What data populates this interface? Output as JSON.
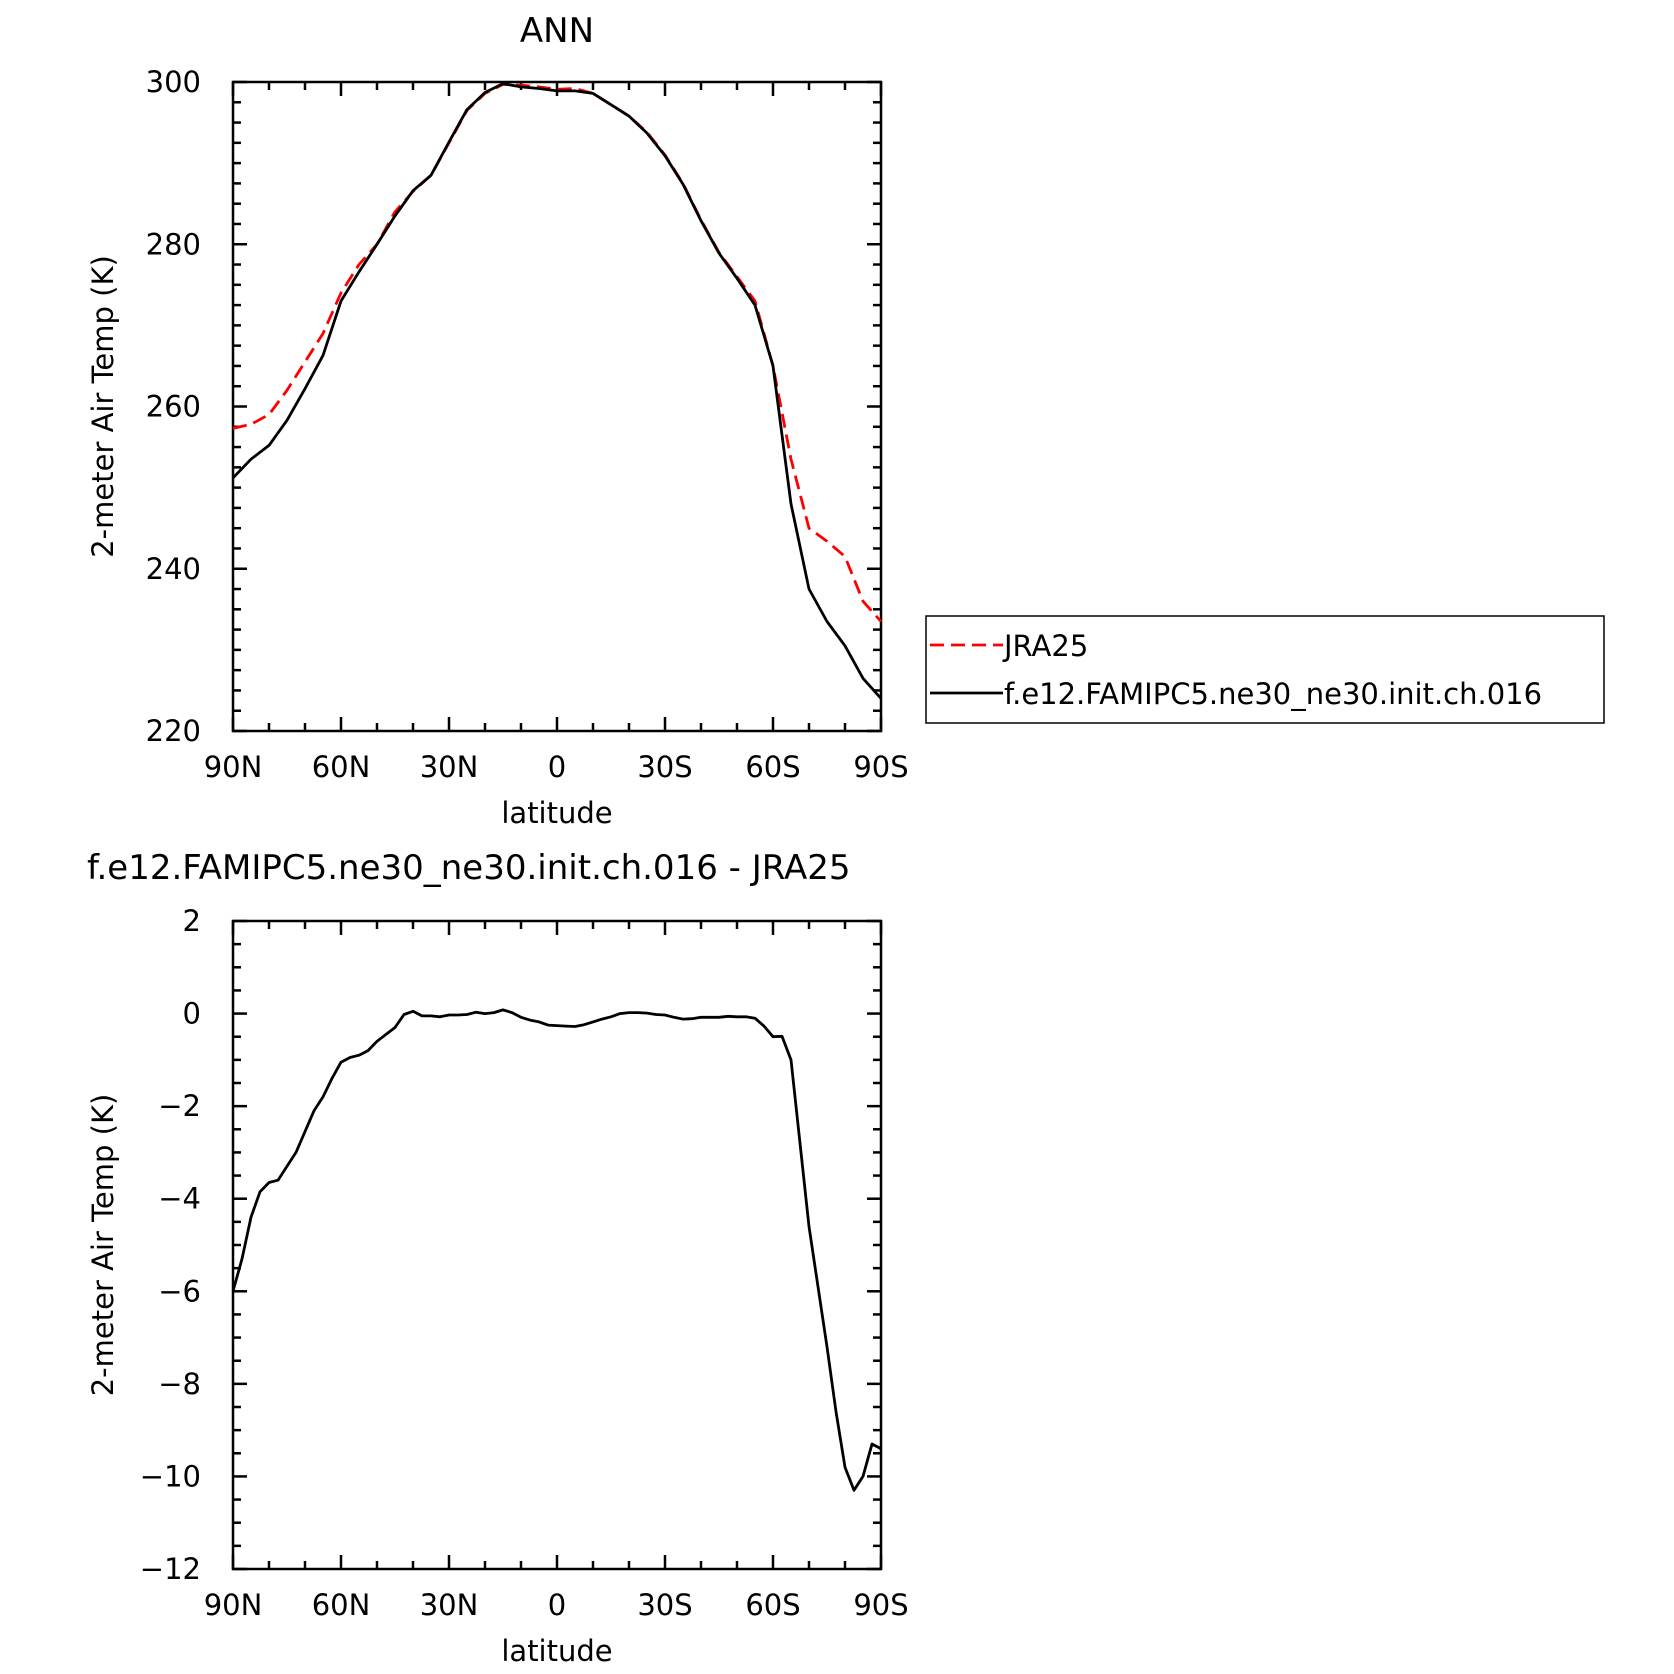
{
  "chart_data": [
    {
      "type": "line",
      "title": "ANN",
      "xlabel": "latitude",
      "ylabel": "2-meter Air Temp (K)",
      "xlim": [
        -90,
        90
      ],
      "ylim": [
        220,
        300
      ],
      "x_direction": "north-to-south",
      "xticks": [
        -90,
        -60,
        -30,
        0,
        30,
        60,
        90
      ],
      "xtick_labels": [
        "90N",
        "60N",
        "30N",
        "0",
        "30S",
        "60S",
        "90S"
      ],
      "yticks": [
        220,
        240,
        260,
        280,
        300
      ],
      "ytick_labels": [
        "220",
        "240",
        "260",
        "280",
        "300"
      ],
      "legend_position": "right",
      "x": [
        -90,
        -85,
        -80,
        -75,
        -70,
        -65,
        -60,
        -55,
        -50,
        -45,
        -40,
        -35,
        -30,
        -25,
        -20,
        -15,
        -10,
        -5,
        0,
        5,
        10,
        15,
        20,
        25,
        30,
        35,
        40,
        45,
        50,
        55,
        60,
        65,
        70,
        75,
        80,
        85,
        90
      ],
      "series": [
        {
          "name": "JRA25",
          "color": "#ff0000",
          "style": "dashed",
          "values": [
            257.3,
            257.8,
            259.0,
            262.0,
            265.5,
            269.0,
            274.0,
            277.5,
            280.0,
            284.0,
            286.5,
            288.5,
            292.5,
            296.5,
            298.6,
            299.7,
            299.6,
            299.4,
            299.1,
            299.2,
            298.6,
            297.2,
            295.8,
            293.8,
            291.0,
            287.5,
            283.0,
            279.0,
            276.0,
            273.0,
            265.0,
            253.5,
            245.0,
            243.4,
            241.5,
            236.0,
            233.5
          ]
        },
        {
          "name": "f.e12.FAMIPC5.ne30_ne30.init.ch.016",
          "color": "#000000",
          "style": "solid",
          "values": [
            251.2,
            253.5,
            255.2,
            258.3,
            262.2,
            266.3,
            273.0,
            276.6,
            280.0,
            283.5,
            286.6,
            288.5,
            292.6,
            296.6,
            298.7,
            299.8,
            299.4,
            299.2,
            298.9,
            298.9,
            298.6,
            297.2,
            295.8,
            293.7,
            290.9,
            287.4,
            282.9,
            278.9,
            275.8,
            272.5,
            265.0,
            248.0,
            237.5,
            233.5,
            230.5,
            226.5,
            224.0
          ]
        }
      ]
    },
    {
      "type": "line",
      "title": "f.e12.FAMIPC5.ne30_ne30.init.ch.016 - JRA25",
      "xlabel": "latitude",
      "ylabel": "2-meter Air Temp (K)",
      "xlim": [
        -90,
        90
      ],
      "ylim": [
        -12,
        2
      ],
      "x_direction": "north-to-south",
      "xticks": [
        -90,
        -60,
        -30,
        0,
        30,
        60,
        90
      ],
      "xtick_labels": [
        "90N",
        "60N",
        "30N",
        "0",
        "30S",
        "60S",
        "90S"
      ],
      "yticks": [
        -12,
        -10,
        -8,
        -6,
        -4,
        -2,
        0,
        2
      ],
      "ytick_labels": [
        "-12",
        "-10",
        "-8",
        "-6",
        "-4",
        "-2",
        "0",
        "2"
      ],
      "x": [
        -90,
        -87.5,
        -85,
        -82.5,
        -80,
        -77.5,
        -75,
        -72.5,
        -70,
        -67.5,
        -65,
        -62.5,
        -60,
        -57.5,
        -55,
        -52.5,
        -50,
        -47.5,
        -45,
        -42.5,
        -40,
        -37.5,
        -35,
        -32.5,
        -30,
        -27.5,
        -25,
        -22.5,
        -20,
        -17.5,
        -15,
        -12.5,
        -10,
        -7.5,
        -5,
        -2.5,
        0,
        2.5,
        5,
        7.5,
        10,
        12.5,
        15,
        17.5,
        20,
        22.5,
        25,
        27.5,
        30,
        32.5,
        35,
        37.5,
        40,
        42.5,
        45,
        47.5,
        50,
        52.5,
        55,
        57.5,
        60,
        62.5,
        65,
        67.5,
        70,
        72.5,
        75,
        77.5,
        80,
        82.5,
        85,
        87.5,
        90
      ],
      "series": [
        {
          "name": "",
          "color": "#000000",
          "style": "solid",
          "values": [
            -6.0,
            -5.3,
            -4.4,
            -3.85,
            -3.65,
            -3.6,
            -3.3,
            -3.0,
            -2.55,
            -2.1,
            -1.8,
            -1.4,
            -1.05,
            -0.95,
            -0.9,
            -0.8,
            -0.6,
            -0.45,
            -0.3,
            -0.02,
            0.05,
            -0.05,
            -0.05,
            -0.07,
            -0.03,
            -0.03,
            -0.02,
            0.03,
            0.0,
            0.02,
            0.08,
            0.02,
            -0.08,
            -0.14,
            -0.18,
            -0.25,
            -0.26,
            -0.27,
            -0.28,
            -0.24,
            -0.18,
            -0.12,
            -0.07,
            0.0,
            0.02,
            0.02,
            0.01,
            -0.02,
            -0.03,
            -0.08,
            -0.12,
            -0.11,
            -0.08,
            -0.08,
            -0.08,
            -0.06,
            -0.07,
            -0.07,
            -0.1,
            -0.27,
            -0.5,
            -0.49,
            -1.0,
            -2.8,
            -4.6,
            -5.9,
            -7.2,
            -8.6,
            -9.8,
            -10.3,
            -10.0,
            -9.3,
            -9.4
          ]
        }
      ]
    }
  ]
}
